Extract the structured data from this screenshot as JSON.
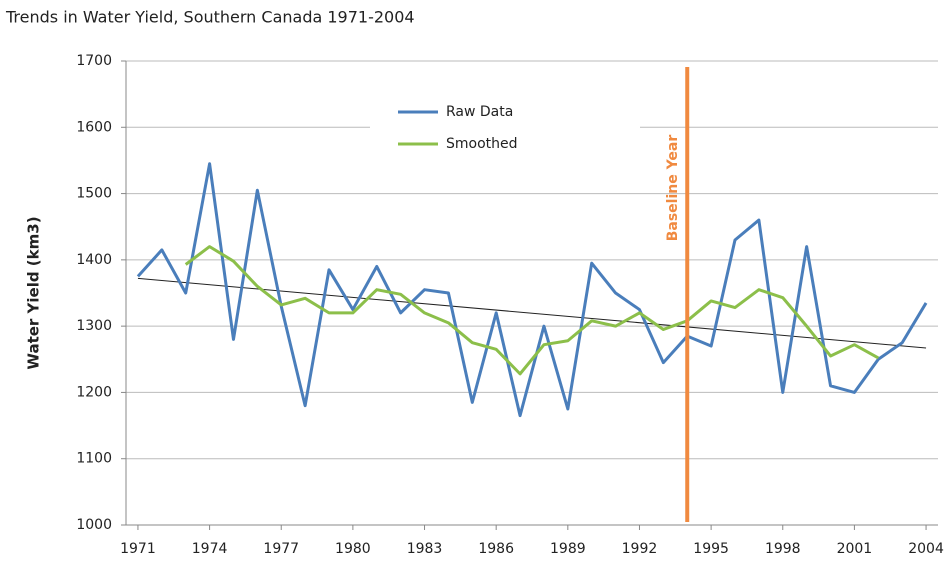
{
  "chart_data": {
    "type": "line",
    "title": "Trends in Water Yield, Southern Canada 1971-2004",
    "y_label": "Water Yield (km3)",
    "x": [
      1971,
      1972,
      1973,
      1974,
      1975,
      1976,
      1977,
      1978,
      1979,
      1980,
      1981,
      1982,
      1983,
      1984,
      1985,
      1986,
      1987,
      1988,
      1989,
      1990,
      1991,
      1992,
      1993,
      1994,
      1995,
      1996,
      1997,
      1998,
      1999,
      2000,
      2001,
      2002,
      2003,
      2004
    ],
    "series": [
      {
        "name": "Raw Data",
        "color": "#4a7ebb",
        "values": [
          1375,
          1415,
          1350,
          1545,
          1280,
          1505,
          1330,
          1180,
          1385,
          1325,
          1390,
          1320,
          1355,
          1350,
          1185,
          1320,
          1165,
          1300,
          1175,
          1395,
          1350,
          1325,
          1245,
          1285,
          1270,
          1430,
          1460,
          1200,
          1420,
          1210,
          1200,
          1250,
          1275,
          1335
        ]
      },
      {
        "name": "Smoothed",
        "color": "#8cbf4a",
        "values": [
          null,
          null,
          1393,
          1420,
          1398,
          1360,
          1332,
          1342,
          1320,
          1320,
          1355,
          1348,
          1320,
          1305,
          1275,
          1265,
          1228,
          1272,
          1278,
          1308,
          1300,
          1320,
          1295,
          1308,
          1338,
          1328,
          1355,
          1343,
          1300,
          1255,
          1272,
          1252,
          null,
          null
        ]
      }
    ],
    "trend": {
      "x": [
        1971,
        2004
      ],
      "values": [
        1372,
        1267
      ],
      "color": "#222222"
    },
    "annotations": [
      {
        "text": "Baseline Year",
        "x": 1994,
        "color": "#f08a40"
      }
    ],
    "xlim": [
      1970.5,
      2004.5
    ],
    "xticks": [
      1971,
      1974,
      1977,
      1980,
      1983,
      1986,
      1989,
      1992,
      1995,
      1998,
      2001,
      2004
    ],
    "ylim": [
      1000,
      1700
    ],
    "yticks": [
      1000,
      1100,
      1200,
      1300,
      1400,
      1500,
      1600,
      1700
    ],
    "grid": true,
    "legend": "upper center"
  }
}
